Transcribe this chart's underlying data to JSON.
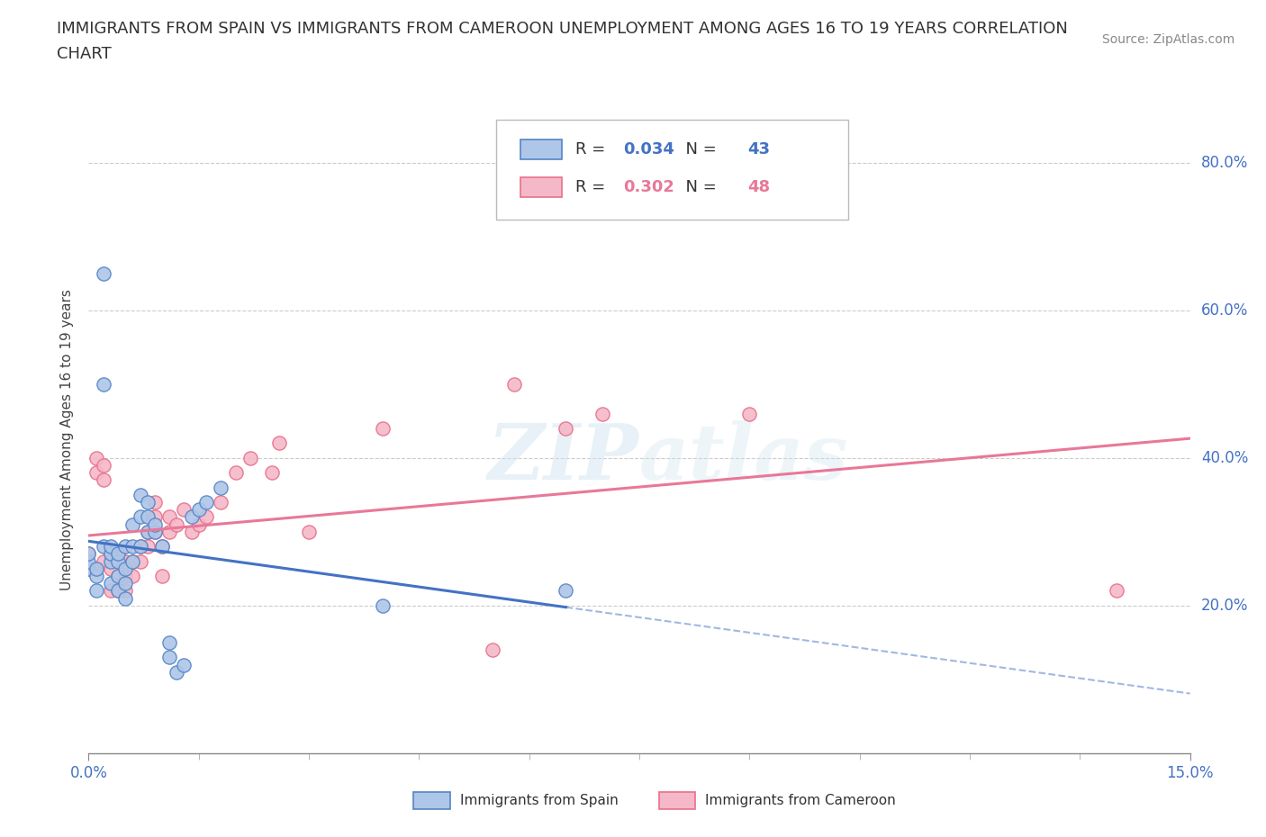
{
  "title_line1": "IMMIGRANTS FROM SPAIN VS IMMIGRANTS FROM CAMEROON UNEMPLOYMENT AMONG AGES 16 TO 19 YEARS CORRELATION",
  "title_line2": "CHART",
  "source_text": "Source: ZipAtlas.com",
  "ylabel": "Unemployment Among Ages 16 to 19 years",
  "xlim": [
    0.0,
    0.15
  ],
  "ylim": [
    0.0,
    0.85
  ],
  "y_ticks": [
    0.0,
    0.2,
    0.4,
    0.6,
    0.8
  ],
  "y_tick_labels": [
    "",
    "20.0%",
    "40.0%",
    "60.0%",
    "80.0%"
  ],
  "spain_R": 0.034,
  "spain_N": 43,
  "cameroon_R": 0.302,
  "cameroon_N": 48,
  "spain_color": "#aec6e8",
  "cameroon_color": "#f5b8c8",
  "spain_edge_color": "#5585c5",
  "cameroon_edge_color": "#e8708a",
  "spain_line_color": "#4472c4",
  "cameroon_line_color": "#e87898",
  "spain_scatter_x": [
    0.0,
    0.0,
    0.0,
    0.001,
    0.001,
    0.001,
    0.002,
    0.002,
    0.002,
    0.003,
    0.003,
    0.003,
    0.003,
    0.004,
    0.004,
    0.004,
    0.004,
    0.005,
    0.005,
    0.005,
    0.005,
    0.006,
    0.006,
    0.006,
    0.007,
    0.007,
    0.007,
    0.008,
    0.008,
    0.008,
    0.009,
    0.009,
    0.01,
    0.011,
    0.011,
    0.012,
    0.013,
    0.014,
    0.015,
    0.016,
    0.018,
    0.04,
    0.065
  ],
  "spain_scatter_y": [
    0.25,
    0.26,
    0.27,
    0.22,
    0.24,
    0.25,
    0.28,
    0.65,
    0.5,
    0.23,
    0.26,
    0.27,
    0.28,
    0.22,
    0.24,
    0.26,
    0.27,
    0.21,
    0.23,
    0.25,
    0.28,
    0.26,
    0.28,
    0.31,
    0.28,
    0.32,
    0.35,
    0.3,
    0.32,
    0.34,
    0.3,
    0.31,
    0.28,
    0.13,
    0.15,
    0.11,
    0.12,
    0.32,
    0.33,
    0.34,
    0.36,
    0.2,
    0.22
  ],
  "cameroon_scatter_x": [
    0.0,
    0.0,
    0.001,
    0.001,
    0.001,
    0.002,
    0.002,
    0.002,
    0.003,
    0.003,
    0.003,
    0.004,
    0.004,
    0.004,
    0.005,
    0.005,
    0.005,
    0.006,
    0.006,
    0.007,
    0.007,
    0.008,
    0.008,
    0.009,
    0.009,
    0.009,
    0.01,
    0.01,
    0.011,
    0.011,
    0.012,
    0.013,
    0.014,
    0.015,
    0.016,
    0.018,
    0.02,
    0.022,
    0.025,
    0.026,
    0.03,
    0.04,
    0.055,
    0.058,
    0.065,
    0.07,
    0.09,
    0.14
  ],
  "cameroon_scatter_y": [
    0.25,
    0.27,
    0.25,
    0.38,
    0.4,
    0.26,
    0.37,
    0.39,
    0.22,
    0.25,
    0.27,
    0.22,
    0.24,
    0.27,
    0.22,
    0.24,
    0.26,
    0.24,
    0.26,
    0.26,
    0.28,
    0.28,
    0.3,
    0.3,
    0.32,
    0.34,
    0.24,
    0.28,
    0.3,
    0.32,
    0.31,
    0.33,
    0.3,
    0.31,
    0.32,
    0.34,
    0.38,
    0.4,
    0.38,
    0.42,
    0.3,
    0.44,
    0.14,
    0.5,
    0.44,
    0.46,
    0.46,
    0.22
  ],
  "background_color": "#ffffff",
  "grid_color": "#cccccc",
  "watermark_text": "ZIPatlas"
}
